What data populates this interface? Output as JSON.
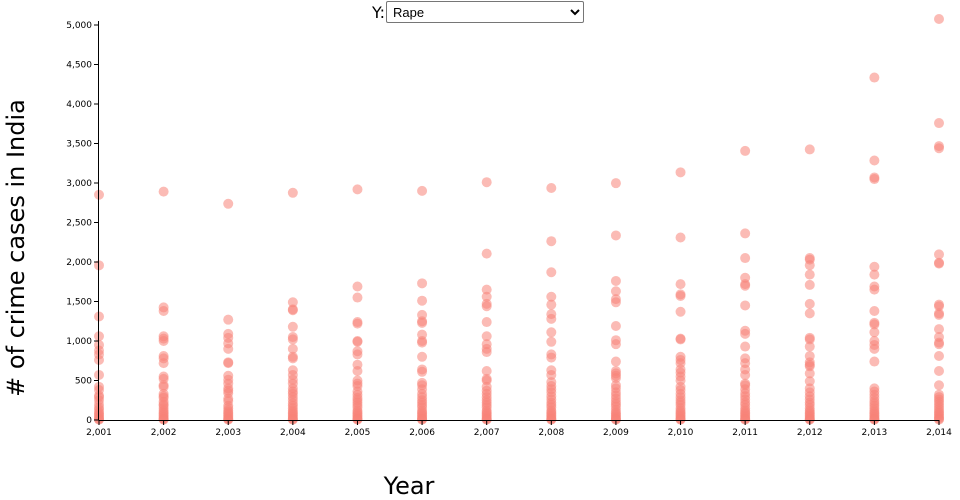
{
  "controls": {
    "y_label": "Y:",
    "y_selected": "Rape"
  },
  "chart_data": {
    "type": "scatter",
    "title": "",
    "xlabel": "Year",
    "ylabel": "# of crime cases in India",
    "xlim": [
      2001,
      2014
    ],
    "ylim": [
      0,
      5000
    ],
    "x_ticks": [
      2001,
      2002,
      2003,
      2004,
      2005,
      2006,
      2007,
      2008,
      2009,
      2010,
      2011,
      2012,
      2013,
      2014
    ],
    "x_tick_labels": [
      "2,001",
      "2,002",
      "2,003",
      "2,004",
      "2,005",
      "2,006",
      "2,007",
      "2,008",
      "2,009",
      "2,010",
      "2,011",
      "2,012",
      "2,013",
      "2,014"
    ],
    "y_ticks": [
      0,
      500,
      1000,
      1500,
      2000,
      2500,
      3000,
      3500,
      4000,
      4500,
      5000
    ],
    "y_tick_labels": [
      "0",
      "500",
      "1,000",
      "1,500",
      "2,000",
      "2,500",
      "3,000",
      "3,500",
      "4,000",
      "4,500",
      "5,000"
    ],
    "point_color": "#f88379",
    "series": [
      {
        "x": 2001,
        "values": [
          2851,
          1958,
          1310,
          1060,
          950,
          880,
          830,
          760,
          570,
          420,
          380,
          310,
          290,
          250,
          200,
          160,
          130,
          100,
          80,
          60,
          40,
          20,
          10,
          5
        ]
      },
      {
        "x": 2002,
        "values": [
          2891,
          1425,
          1380,
          1060,
          1030,
          1000,
          810,
          780,
          720,
          550,
          520,
          440,
          420,
          330,
          300,
          280,
          230,
          200,
          180,
          150,
          120,
          100,
          80,
          60,
          40,
          20,
          10,
          5
        ]
      },
      {
        "x": 2003,
        "values": [
          2737,
          1270,
          1090,
          1040,
          970,
          900,
          730,
          720,
          560,
          510,
          460,
          400,
          370,
          340,
          270,
          240,
          180,
          150,
          120,
          100,
          80,
          60,
          40,
          20,
          10,
          5
        ]
      },
      {
        "x": 2004,
        "values": [
          2876,
          1490,
          1400,
          1390,
          1180,
          1050,
          1020,
          900,
          800,
          780,
          630,
          570,
          510,
          460,
          400,
          360,
          330,
          290,
          250,
          210,
          180,
          150,
          120,
          100,
          80,
          60,
          40,
          20,
          10,
          5
        ]
      },
      {
        "x": 2005,
        "values": [
          2919,
          1690,
          1550,
          1240,
          1220,
          1000,
          990,
          870,
          830,
          700,
          620,
          500,
          460,
          430,
          360,
          320,
          280,
          250,
          220,
          190,
          160,
          120,
          100,
          80,
          60,
          40,
          20,
          10,
          5
        ]
      },
      {
        "x": 2006,
        "values": [
          2900,
          1730,
          1510,
          1330,
          1250,
          1230,
          1080,
          1000,
          980,
          800,
          640,
          610,
          470,
          440,
          390,
          330,
          290,
          250,
          220,
          190,
          160,
          120,
          100,
          80,
          60,
          40,
          20,
          10,
          5
        ]
      },
      {
        "x": 2007,
        "values": [
          3010,
          2106,
          1650,
          1560,
          1470,
          1440,
          1240,
          1060,
          960,
          900,
          860,
          620,
          520,
          500,
          420,
          370,
          330,
          290,
          250,
          220,
          190,
          160,
          120,
          100,
          80,
          60,
          40,
          20,
          10,
          5
        ]
      },
      {
        "x": 2008,
        "values": [
          2937,
          2263,
          1870,
          1560,
          1460,
          1340,
          1280,
          1110,
          990,
          830,
          790,
          630,
          570,
          480,
          430,
          390,
          350,
          300,
          260,
          220,
          190,
          160,
          120,
          100,
          80,
          60,
          40,
          20,
          10,
          5
        ]
      },
      {
        "x": 2009,
        "values": [
          2998,
          2336,
          1760,
          1630,
          1530,
          1490,
          1190,
          1010,
          960,
          740,
          620,
          590,
          560,
          530,
          440,
          400,
          350,
          310,
          270,
          230,
          200,
          170,
          130,
          100,
          80,
          60,
          40,
          20,
          10,
          5
        ]
      },
      {
        "x": 2010,
        "values": [
          3135,
          2310,
          1720,
          1590,
          1570,
          1370,
          1030,
          1020,
          800,
          760,
          720,
          640,
          600,
          550,
          500,
          420,
          380,
          330,
          290,
          250,
          220,
          190,
          150,
          120,
          100,
          80,
          60,
          40,
          20,
          10,
          5
        ]
      },
      {
        "x": 2011,
        "values": [
          3406,
          2362,
          2050,
          1800,
          1720,
          1700,
          1450,
          1130,
          1090,
          930,
          780,
          720,
          640,
          570,
          460,
          440,
          390,
          340,
          300,
          260,
          220,
          190,
          150,
          120,
          100,
          80,
          60,
          40,
          20,
          10,
          5
        ]
      },
      {
        "x": 2012,
        "values": [
          3425,
          2050,
          2030,
          1960,
          1840,
          1710,
          1470,
          1350,
          1040,
          1020,
          930,
          810,
          730,
          700,
          680,
          590,
          490,
          400,
          350,
          300,
          260,
          220,
          190,
          150,
          120,
          100,
          80,
          60,
          40,
          20,
          10,
          5
        ]
      },
      {
        "x": 2013,
        "values": [
          4335,
          3285,
          3070,
          3050,
          1940,
          1840,
          1690,
          1650,
          1380,
          1230,
          1210,
          1110,
          1000,
          950,
          900,
          740,
          400,
          360,
          320,
          280,
          240,
          210,
          180,
          150,
          120,
          100,
          80,
          60,
          40,
          20,
          10,
          5
        ]
      },
      {
        "x": 2014,
        "values": [
          5076,
          3759,
          3467,
          3440,
          2096,
          1990,
          1980,
          1460,
          1440,
          1350,
          1330,
          1150,
          1050,
          980,
          960,
          810,
          620,
          440,
          320,
          290,
          260,
          230,
          200,
          170,
          140,
          110,
          90,
          70,
          50,
          30,
          15,
          5
        ]
      }
    ]
  }
}
